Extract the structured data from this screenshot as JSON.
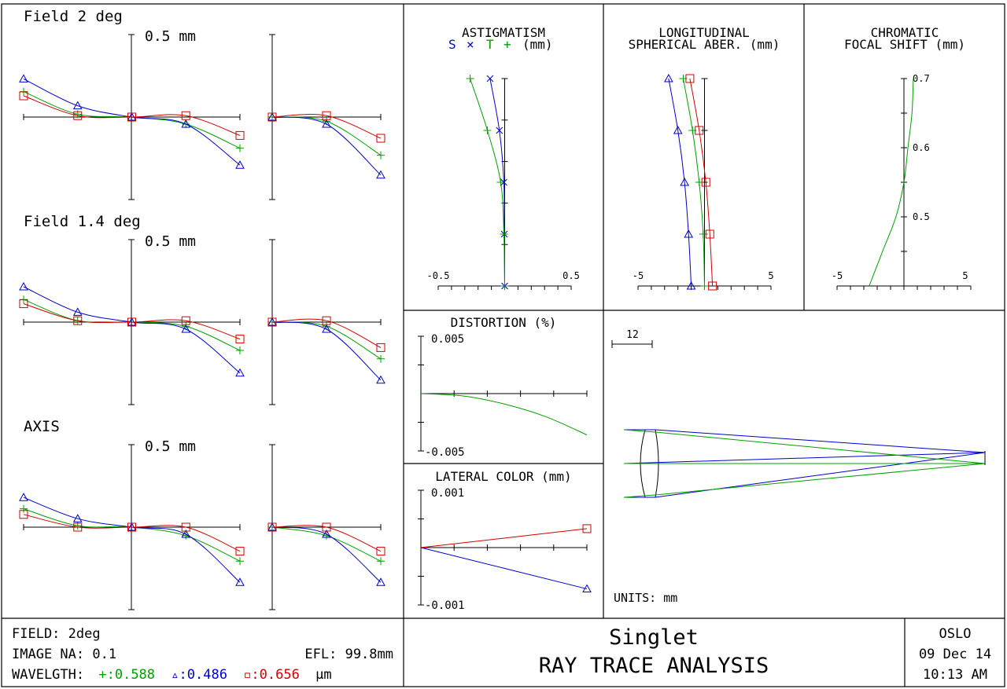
{
  "colors": {
    "green": "#00a000",
    "blue": "#0000c8",
    "red": "#d00000",
    "frame": "#000000"
  },
  "ray_fans": {
    "scale_label": "0.5 mm",
    "fields": [
      {
        "title": "Field 2 deg"
      },
      {
        "title": "Field 1.4 deg"
      },
      {
        "title": "AXIS"
      }
    ]
  },
  "astigmatism": {
    "title": "ASTIGMATISM",
    "legend_s": "S",
    "legend_x": "×",
    "legend_t": "T",
    "legend_plus": "+",
    "unit": "(mm)",
    "x_min_label": "-0.5",
    "x_max_label": "0.5"
  },
  "spherical": {
    "title_line1": "LONGITUDINAL",
    "title_line2": "SPHERICAL ABER. (mm)",
    "x_min_label": "-5",
    "x_max_label": "5"
  },
  "chromatic": {
    "title_line1": "CHROMATIC",
    "title_line2": "FOCAL SHIFT (mm)",
    "x_min_label": "-5",
    "x_max_label": "5",
    "y_labels": [
      "0.7",
      "0.6",
      "0.5"
    ]
  },
  "distortion": {
    "title": "DISTORTION (%)",
    "y_max_label": "0.005",
    "y_min_label": "-0.005"
  },
  "lateral_color": {
    "title": "LATERAL COLOR (mm)",
    "y_max_label": "0.001",
    "y_min_label": "-0.001"
  },
  "layout_view": {
    "scale_label": "12",
    "units": "UNITS: mm"
  },
  "footer": {
    "field": "FIELD: 2deg",
    "image_na": "IMAGE NA: 0.1",
    "efl": "EFL: 99.8mm",
    "wavelength_label": "WAVELGTH:",
    "wl_green": "+:0.588",
    "wl_blue": "▵:0.486",
    "wl_red": "▫:0.656",
    "wl_unit": "μm",
    "lens_name": "Singlet",
    "analysis_title": "RAY TRACE ANALYSIS",
    "program": "OSLO",
    "date": "09 Dec 14",
    "time": "10:13 AM"
  },
  "chart_data": [
    {
      "type": "line",
      "title": "Field 2 deg",
      "panel": "tangential",
      "x": [
        -1,
        -0.5,
        0,
        0.5,
        1
      ],
      "series": [
        {
          "color": "#00a000",
          "marker": "plus",
          "values": [
            0.18,
            0.02,
            0,
            -0.05,
            -0.22
          ]
        },
        {
          "color": "#0000c8",
          "marker": "triangle",
          "values": [
            0.27,
            0.08,
            0,
            -0.05,
            -0.34
          ]
        },
        {
          "color": "#d00000",
          "marker": "square",
          "values": [
            0.15,
            0.01,
            0,
            0.01,
            -0.13
          ]
        }
      ]
    },
    {
      "type": "line",
      "title": "Field 2 deg",
      "panel": "sagittal",
      "x": [
        0,
        0.5,
        1
      ],
      "series": [
        {
          "color": "#00a000",
          "marker": "plus",
          "values": [
            0,
            -0.03,
            -0.27
          ]
        },
        {
          "color": "#0000c8",
          "marker": "triangle",
          "values": [
            0,
            -0.05,
            -0.41
          ]
        },
        {
          "color": "#d00000",
          "marker": "square",
          "values": [
            0,
            0.01,
            -0.15
          ]
        }
      ]
    },
    {
      "type": "line",
      "title": "Field 1.4 deg",
      "panel": "tangential",
      "x": [
        -1,
        -0.5,
        0,
        0.5,
        1
      ],
      "series": [
        {
          "color": "#00a000",
          "marker": "plus",
          "values": [
            0.16,
            0.01,
            0,
            -0.03,
            -0.2
          ]
        },
        {
          "color": "#0000c8",
          "marker": "triangle",
          "values": [
            0.25,
            0.07,
            0,
            -0.05,
            -0.36
          ]
        },
        {
          "color": "#d00000",
          "marker": "square",
          "values": [
            0.13,
            0.01,
            0,
            0.01,
            -0.12
          ]
        }
      ]
    },
    {
      "type": "line",
      "title": "Field 1.4 deg",
      "panel": "sagittal",
      "x": [
        0,
        0.5,
        1
      ],
      "series": [
        {
          "color": "#00a000",
          "marker": "plus",
          "values": [
            0,
            -0.03,
            -0.26
          ]
        },
        {
          "color": "#0000c8",
          "marker": "triangle",
          "values": [
            0,
            -0.05,
            -0.41
          ]
        },
        {
          "color": "#d00000",
          "marker": "square",
          "values": [
            0,
            0.01,
            -0.18
          ]
        }
      ]
    },
    {
      "type": "line",
      "title": "AXIS",
      "panel": "tangential",
      "x": [
        -1,
        -0.5,
        0,
        0.5,
        1
      ],
      "series": [
        {
          "color": "#00a000",
          "marker": "plus",
          "values": [
            0.13,
            0.01,
            0,
            -0.06,
            -0.24
          ]
        },
        {
          "color": "#0000c8",
          "marker": "triangle",
          "values": [
            0.21,
            0.06,
            0,
            -0.05,
            -0.39
          ]
        },
        {
          "color": "#d00000",
          "marker": "square",
          "values": [
            0.09,
            0,
            0,
            0,
            -0.17
          ]
        }
      ]
    },
    {
      "type": "line",
      "title": "AXIS",
      "panel": "sagittal",
      "x": [
        0,
        0.5,
        1
      ],
      "series": [
        {
          "color": "#00a000",
          "marker": "plus",
          "values": [
            0,
            -0.06,
            -0.24
          ]
        },
        {
          "color": "#0000c8",
          "marker": "triangle",
          "values": [
            0,
            -0.05,
            -0.39
          ]
        },
        {
          "color": "#d00000",
          "marker": "square",
          "values": [
            0,
            0,
            -0.17
          ]
        }
      ]
    },
    {
      "type": "line",
      "title": "ASTIGMATISM",
      "xlim": [
        -0.5,
        0.5
      ],
      "ylim": [
        0,
        1
      ],
      "series": [
        {
          "color": "#0000c8",
          "marker": "x",
          "points": [
            [
              0,
              0
            ],
            [
              -0.003,
              0.25
            ],
            [
              -0.006,
              0.5
            ],
            [
              -0.04,
              0.75
            ],
            [
              -0.11,
              1.0
            ]
          ]
        },
        {
          "color": "#00a000",
          "marker": "plus",
          "points": [
            [
              0,
              0
            ],
            [
              -0.006,
              0.25
            ],
            [
              -0.03,
              0.5
            ],
            [
              -0.13,
              0.75
            ],
            [
              -0.26,
              1.0
            ]
          ]
        }
      ]
    },
    {
      "type": "line",
      "title": "LONGITUDINAL SPHERICAL ABER. (mm)",
      "xlim": [
        -5,
        5
      ],
      "ylim": [
        0,
        1
      ],
      "series": [
        {
          "color": "#00a000",
          "marker": "plus",
          "points": [
            [
              0,
              0
            ],
            [
              -0.1,
              0.25
            ],
            [
              -0.4,
              0.5
            ],
            [
              -0.9,
              0.75
            ],
            [
              -1.6,
              1.0
            ]
          ]
        },
        {
          "color": "#0000c8",
          "marker": "triangle",
          "points": [
            [
              -1.0,
              0
            ],
            [
              -1.2,
              0.25
            ],
            [
              -1.5,
              0.5
            ],
            [
              -2.0,
              0.75
            ],
            [
              -2.7,
              1.0
            ]
          ]
        },
        {
          "color": "#d00000",
          "marker": "square",
          "points": [
            [
              0.6,
              0
            ],
            [
              0.4,
              0.25
            ],
            [
              0.1,
              0.5
            ],
            [
              -0.4,
              0.75
            ],
            [
              -1.1,
              1.0
            ]
          ]
        }
      ]
    },
    {
      "type": "line",
      "title": "CHROMATIC FOCAL SHIFT (mm)",
      "xlim": [
        -5,
        5
      ],
      "ylim": [
        0.4,
        0.7
      ],
      "series": [
        {
          "color": "#00a000",
          "points": [
            [
              -2.6,
              0.4
            ],
            [
              -1.6,
              0.45
            ],
            [
              -0.6,
              0.5
            ],
            [
              0.0,
              0.55
            ],
            [
              0.3,
              0.6
            ],
            [
              0.6,
              0.65
            ],
            [
              0.7,
              0.7
            ]
          ]
        }
      ]
    },
    {
      "type": "line",
      "title": "DISTORTION (%)",
      "ylim": [
        -0.005,
        0.005
      ],
      "series": [
        {
          "color": "#00a000",
          "points": [
            [
              0,
              0
            ],
            [
              0.25,
              -0.0002
            ],
            [
              0.5,
              -0.0009
            ],
            [
              0.75,
              -0.002
            ],
            [
              1.0,
              -0.0036
            ]
          ]
        }
      ]
    },
    {
      "type": "line",
      "title": "LATERAL COLOR (mm)",
      "ylim": [
        -0.001,
        0.001
      ],
      "series": [
        {
          "color": "#d00000",
          "marker": "square",
          "points": [
            [
              0,
              0
            ],
            [
              1.0,
              0.00033
            ]
          ]
        },
        {
          "color": "#0000c8",
          "marker": "triangle",
          "points": [
            [
              0,
              0
            ],
            [
              1.0,
              -0.00072
            ]
          ]
        }
      ]
    }
  ]
}
